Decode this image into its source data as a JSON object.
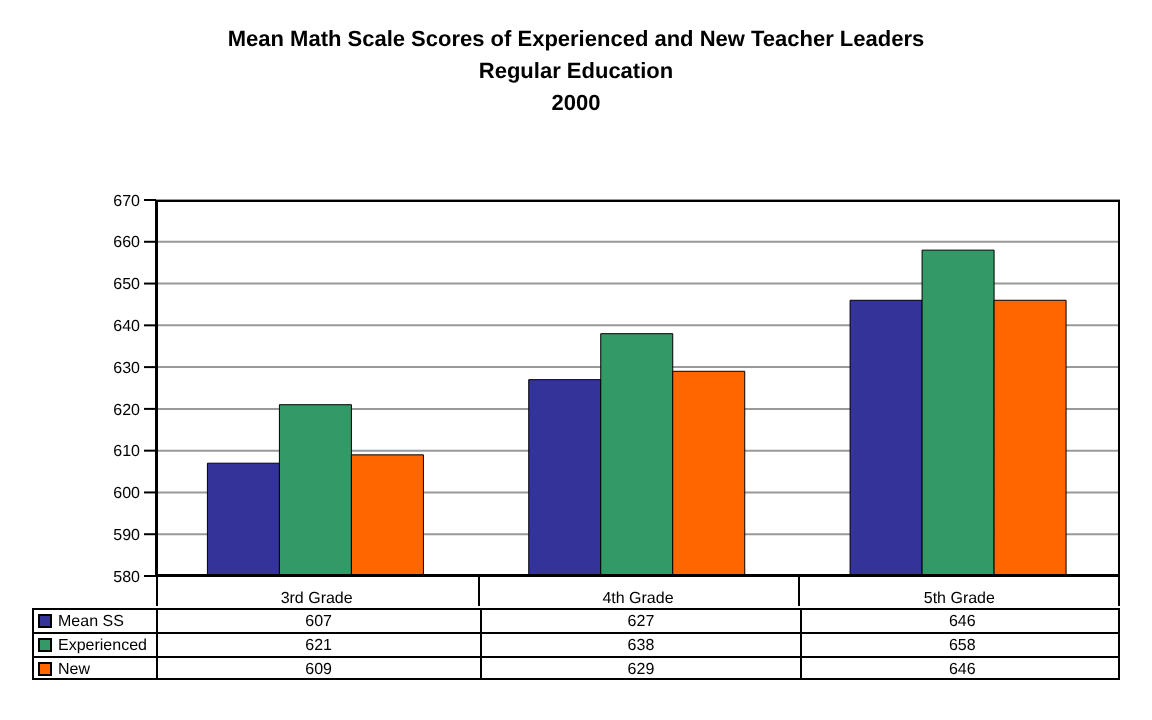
{
  "chart_data": {
    "type": "bar",
    "title": "Mean Math Scale Scores of Experienced and New Teacher Leaders",
    "subtitle": "Regular Education\n2000",
    "categories": [
      "3rd Grade",
      "4th Grade",
      "5th Grade"
    ],
    "series": [
      {
        "name": "Mean SS",
        "color": "#333399",
        "values": [
          607,
          627,
          646
        ]
      },
      {
        "name": "Experienced",
        "color": "#339966",
        "values": [
          621,
          638,
          658
        ]
      },
      {
        "name": "New",
        "color": "#ff6600",
        "values": [
          609,
          629,
          646
        ]
      }
    ],
    "ylim": [
      580,
      670
    ],
    "yticks": [
      580,
      590,
      600,
      610,
      620,
      630,
      640,
      650,
      660,
      670
    ],
    "grid": "y",
    "data_labels": true,
    "legend": "bottom left"
  }
}
